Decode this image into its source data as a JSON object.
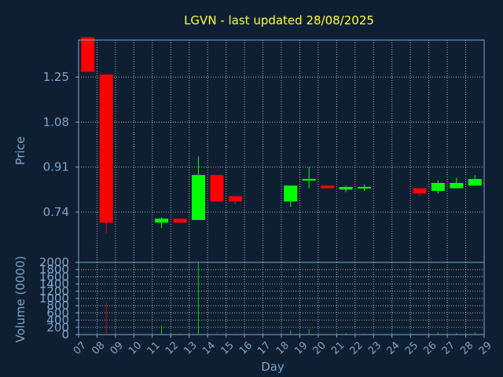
{
  "colors": {
    "background": "#0f1f33",
    "axis": "#7fa3c7",
    "title": "#ffff33",
    "label": "#7fa3c7",
    "grid": "#c0c8d0",
    "up": "#00ff00",
    "down": "#ff0000",
    "up_volume": "#00c000",
    "down_volume": "#c00000"
  },
  "chart_data": {
    "type": "candlestick",
    "title": "LGVN - last updated 28/08/2025",
    "xlabel": "Day",
    "price_panel": {
      "ylabel": "Price",
      "ylim": [
        0.55,
        1.39
      ],
      "yticks": [
        "1.25",
        "1.08",
        "0.91",
        "0.74"
      ],
      "ytick_values": [
        1.25,
        1.08,
        0.91,
        0.74
      ]
    },
    "volume_panel": {
      "ylabel": "Volume (0000)",
      "ylim": [
        0,
        2000
      ],
      "yticks": [
        "2000",
        "1800",
        "1600",
        "1400",
        "1200",
        "1000",
        "800",
        "600",
        "400",
        "200",
        "0"
      ],
      "ytick_values": [
        2000,
        1800,
        1600,
        1400,
        1200,
        1000,
        800,
        600,
        400,
        200,
        0
      ]
    },
    "x_ticks": [
      "07",
      "08",
      "09",
      "10",
      "11",
      "12",
      "13",
      "14",
      "15",
      "16",
      "17",
      "18",
      "19",
      "20",
      "21",
      "22",
      "23",
      "24",
      "25",
      "26",
      "27",
      "28",
      "29"
    ],
    "candles": [
      {
        "day": "07",
        "open": 1.4,
        "high": 1.4,
        "low": 1.27,
        "close": 1.27,
        "volume": 0
      },
      {
        "day": "08",
        "open": 1.26,
        "high": 1.26,
        "low": 0.66,
        "close": 0.7,
        "volume": 900
      },
      {
        "day": "11",
        "open": 0.7,
        "high": 0.72,
        "low": 0.68,
        "close": 0.715,
        "volume": 250
      },
      {
        "day": "12",
        "open": 0.715,
        "high": 0.715,
        "low": 0.7,
        "close": 0.7,
        "volume": 50
      },
      {
        "day": "13",
        "open": 0.71,
        "high": 0.95,
        "low": 0.71,
        "close": 0.88,
        "volume": 2000
      },
      {
        "day": "14",
        "open": 0.88,
        "high": 0.88,
        "low": 0.78,
        "close": 0.78,
        "volume": 80
      },
      {
        "day": "15",
        "open": 0.8,
        "high": 0.8,
        "low": 0.77,
        "close": 0.78,
        "volume": 30
      },
      {
        "day": "18",
        "open": 0.78,
        "high": 0.84,
        "low": 0.76,
        "close": 0.84,
        "volume": 120
      },
      {
        "day": "19",
        "open": 0.86,
        "high": 0.91,
        "low": 0.83,
        "close": 0.865,
        "volume": 150
      },
      {
        "day": "20",
        "open": 0.84,
        "high": 0.84,
        "low": 0.83,
        "close": 0.83,
        "volume": 20
      },
      {
        "day": "21",
        "open": 0.825,
        "high": 0.84,
        "low": 0.815,
        "close": 0.835,
        "volume": 40
      },
      {
        "day": "22",
        "open": 0.83,
        "high": 0.845,
        "low": 0.82,
        "close": 0.835,
        "volume": 25
      },
      {
        "day": "25",
        "open": 0.83,
        "high": 0.83,
        "low": 0.8,
        "close": 0.81,
        "volume": 20
      },
      {
        "day": "26",
        "open": 0.82,
        "high": 0.86,
        "low": 0.81,
        "close": 0.85,
        "volume": 60
      },
      {
        "day": "27",
        "open": 0.83,
        "high": 0.87,
        "low": 0.83,
        "close": 0.85,
        "volume": 40
      },
      {
        "day": "28",
        "open": 0.84,
        "high": 0.88,
        "low": 0.84,
        "close": 0.865,
        "volume": 50
      }
    ],
    "grid": true,
    "legend": "none"
  }
}
